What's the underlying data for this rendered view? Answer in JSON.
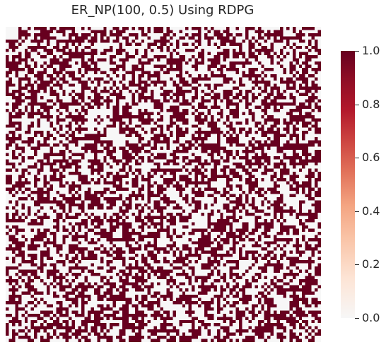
{
  "chart_data": {
    "type": "heatmap",
    "title": "ER_NP(100, 0.5) Using RDPG",
    "rows": 100,
    "cols": 100,
    "edge_probability": 0.5,
    "symmetric": true,
    "value_range": [
      0.0,
      1.0
    ],
    "colormap": "RdBu_r",
    "colors": {
      "low": "#f7f7f7",
      "high": "#67001f"
    },
    "colorbar": {
      "ticks": [
        0.0,
        0.2,
        0.4,
        0.6,
        0.8,
        1.0
      ],
      "tick_labels": [
        "0.0",
        "0.2",
        "0.4",
        "0.6",
        "0.8",
        "1.0"
      ]
    },
    "xlabel": "",
    "ylabel": "",
    "grid": false
  }
}
